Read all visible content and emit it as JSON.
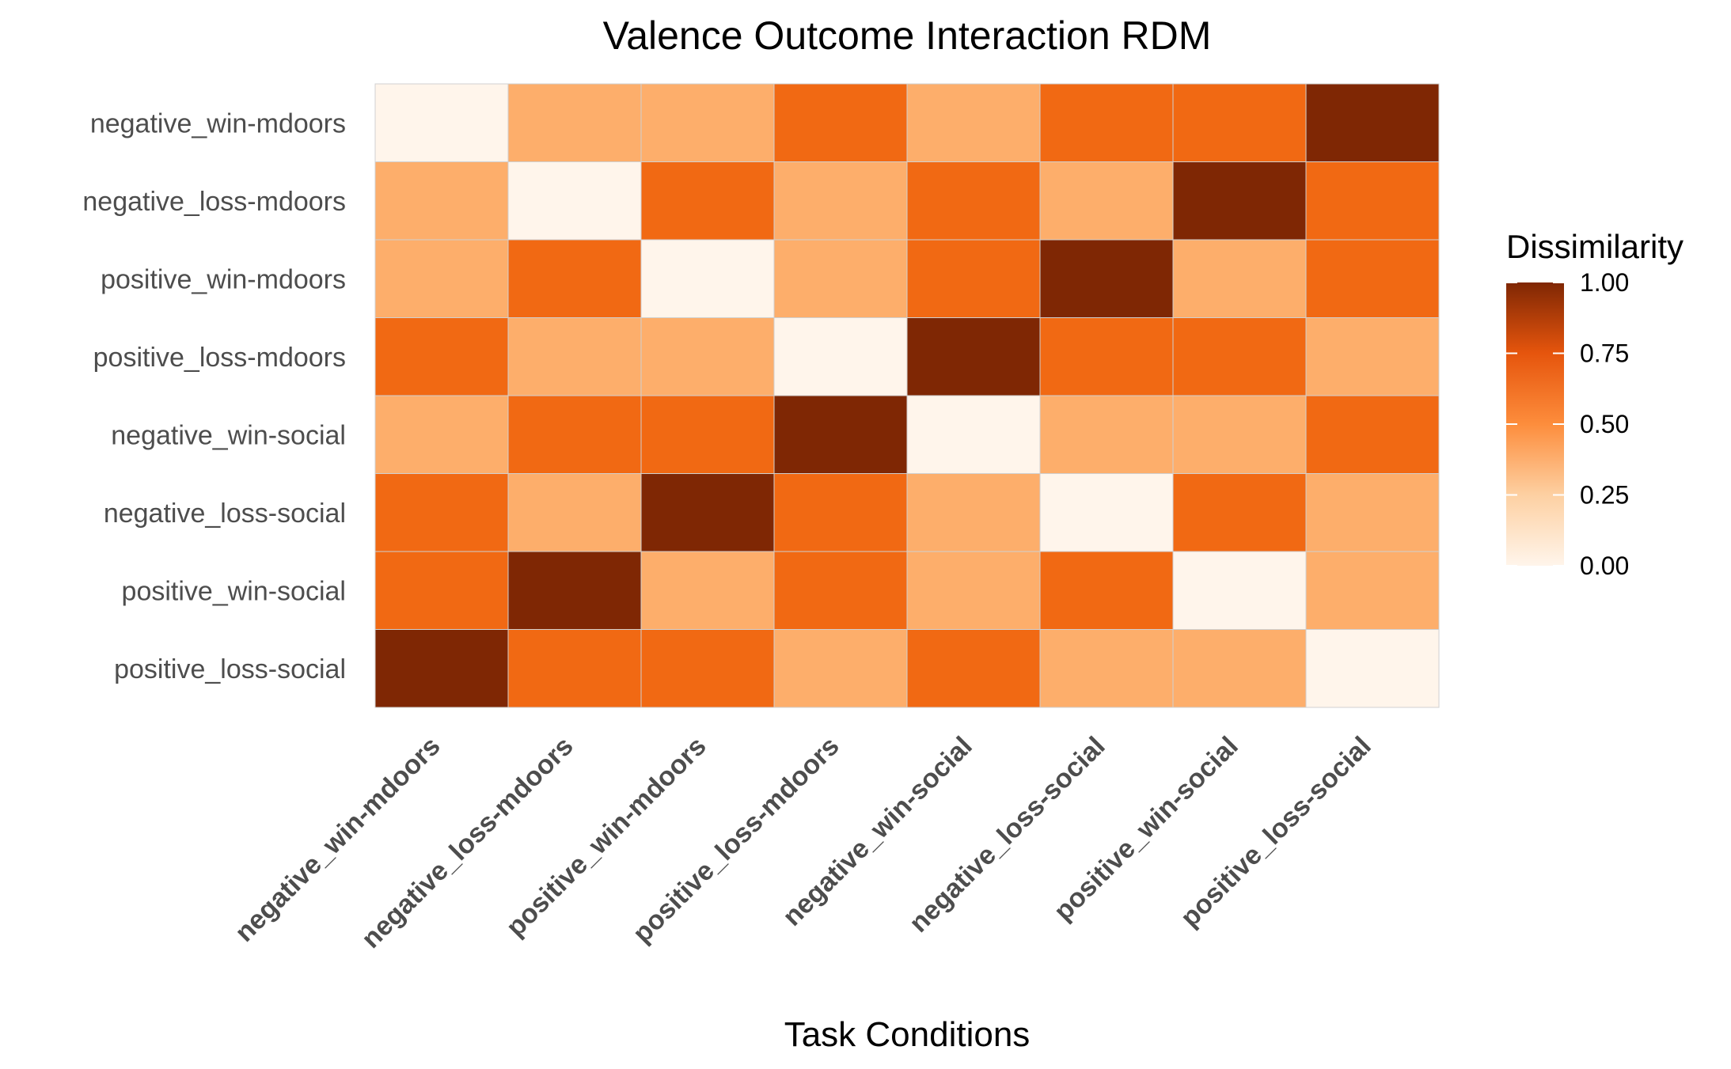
{
  "chart_data": {
    "type": "heatmap",
    "title": "Valence Outcome Interaction RDM",
    "xlabel": "Task Conditions",
    "ylabel": "",
    "conditions": [
      "negative_win-mdoors",
      "negative_loss-mdoors",
      "positive_win-mdoors",
      "positive_loss-mdoors",
      "negative_win-social",
      "negative_loss-social",
      "positive_win-social",
      "positive_loss-social"
    ],
    "values": [
      [
        0,
        0.333,
        0.333,
        0.667,
        0.333,
        0.667,
        0.667,
        1
      ],
      [
        0.333,
        0,
        0.667,
        0.333,
        0.667,
        0.333,
        1,
        0.667
      ],
      [
        0.333,
        0.667,
        0,
        0.333,
        0.667,
        1,
        0.333,
        0.667
      ],
      [
        0.667,
        0.333,
        0.333,
        0,
        1,
        0.667,
        0.667,
        0.333
      ],
      [
        0.333,
        0.667,
        0.667,
        1,
        0,
        0.333,
        0.333,
        0.667
      ],
      [
        0.667,
        0.333,
        1,
        0.667,
        0.333,
        0,
        0.667,
        0.333
      ],
      [
        0.667,
        1,
        0.333,
        0.667,
        0.333,
        0.667,
        0,
        0.333
      ],
      [
        1,
        0.667,
        0.667,
        0.333,
        0.667,
        0.333,
        0.333,
        0
      ]
    ],
    "legend": {
      "title": "Dissimilarity",
      "ticks": [
        "0.00",
        "0.25",
        "0.50",
        "0.75",
        "1.00"
      ],
      "range": [
        0,
        1
      ],
      "position": "right"
    },
    "colors": {
      "low": "#FFF5EB",
      "mid_low": "#FDAE6B",
      "mid_high": "#F16913",
      "high": "#7F2704",
      "grid": "#d0d0d0"
    },
    "grid": false
  }
}
